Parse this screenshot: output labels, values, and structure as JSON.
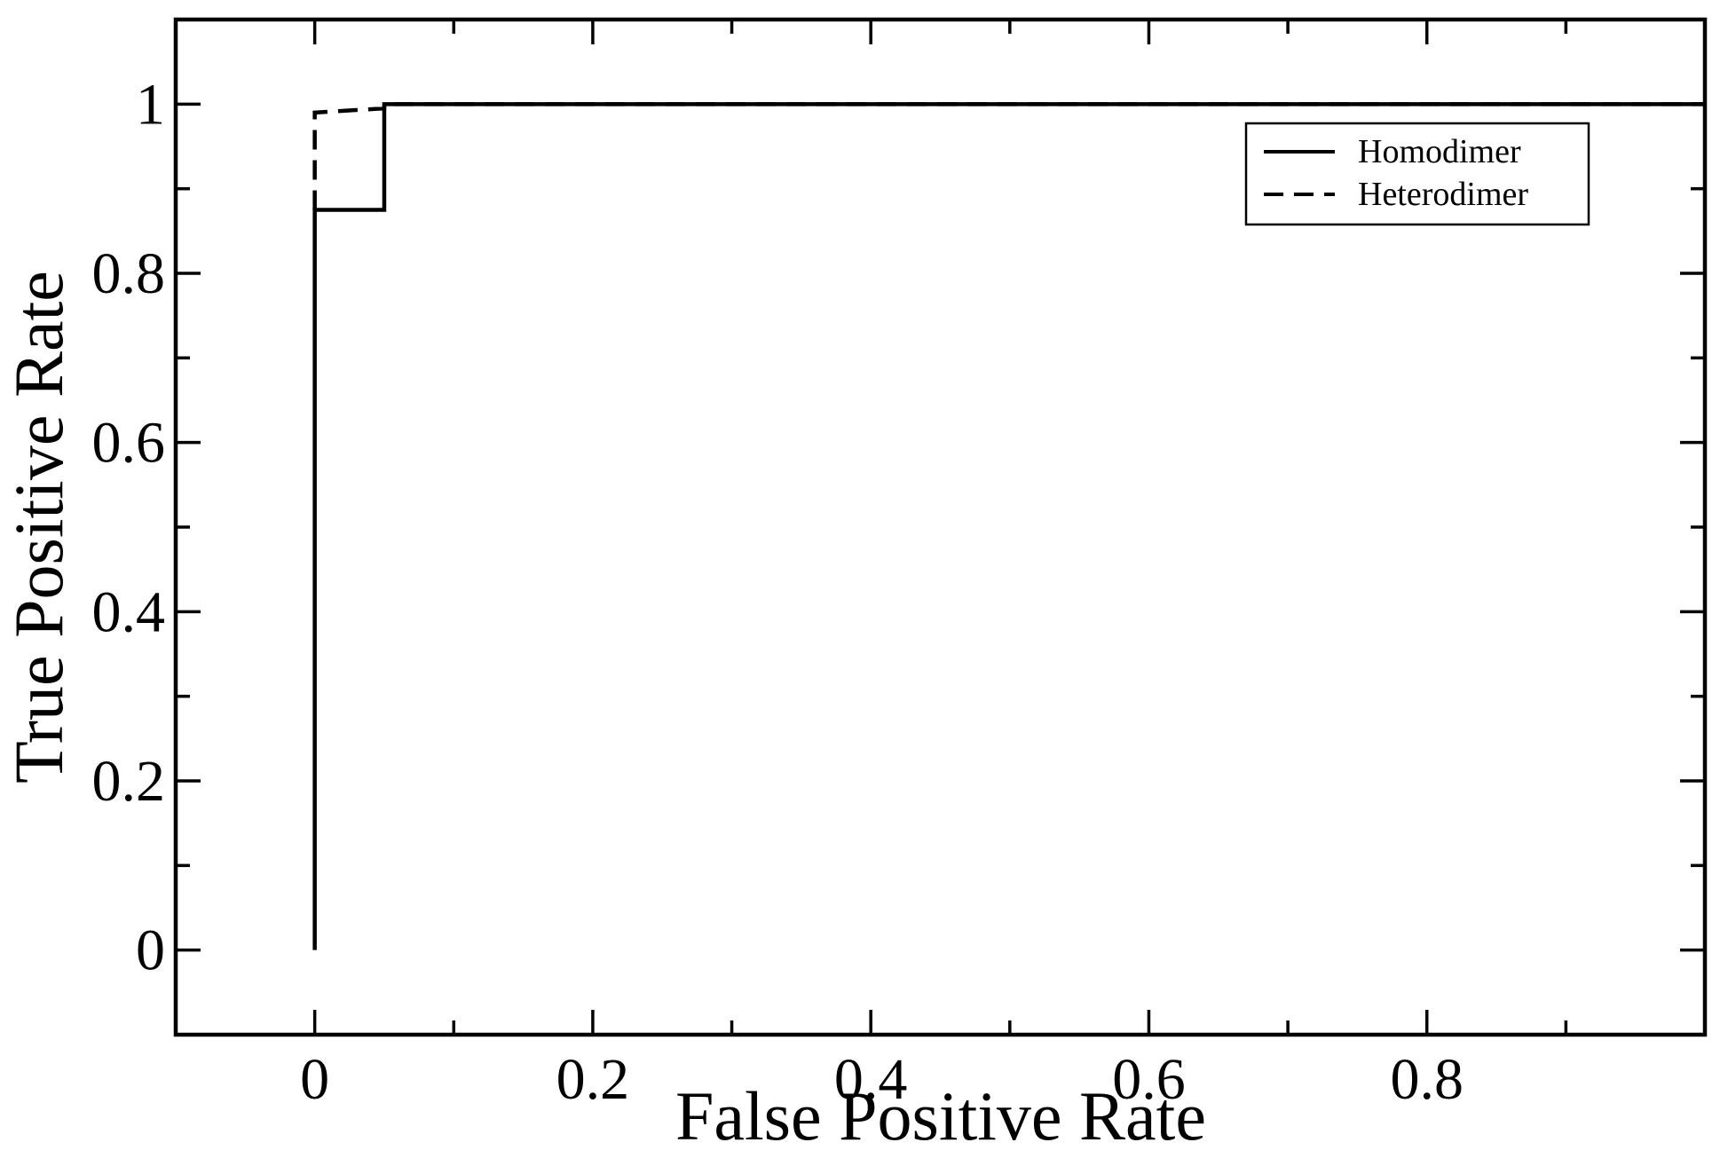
{
  "chart_data": {
    "type": "line",
    "x_label": "False Positive Rate",
    "y_label": "True Positive Rate",
    "xlim": [
      -0.1,
      1.0
    ],
    "ylim": [
      -0.1,
      1.1
    ],
    "xticks": [
      0,
      0.2,
      0.4,
      0.6,
      0.8
    ],
    "yticks": [
      0,
      0.2,
      0.4,
      0.6,
      0.8,
      1
    ],
    "xminorticks": [
      -0.1,
      0.1,
      0.3,
      0.5,
      0.7,
      0.9
    ],
    "yminorticks": [
      0.1,
      0.3,
      0.5,
      0.7,
      0.9
    ],
    "legend": "upper right",
    "series": [
      {
        "name": "Homodimer",
        "color": "#000000",
        "dash": "solid",
        "x": [
          0,
          0,
          0.05,
          0.05,
          1
        ],
        "values": [
          0,
          0.875,
          0.875,
          1,
          1
        ]
      },
      {
        "name": "Heterodimer",
        "color": "#000000",
        "dash": "dashed",
        "x": [
          0,
          0,
          0.05,
          0.05,
          1
        ],
        "values": [
          0.875,
          0.99,
          0.995,
          1,
          1
        ]
      }
    ]
  }
}
